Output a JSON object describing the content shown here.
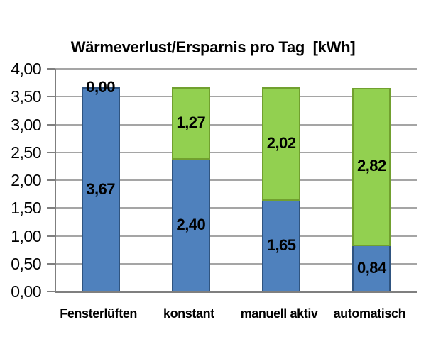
{
  "chart_data": {
    "type": "bar",
    "stacked": true,
    "title": "Wärmeverlust/Ersparnis pro Tag  [kWh]",
    "categories": [
      "Fensterlüften",
      "konstant",
      "manuell aktiv",
      "automatisch"
    ],
    "series": [
      {
        "name": "blue",
        "color": "#4f81bd",
        "border_color": "#2f5480",
        "values": [
          3.67,
          2.4,
          1.65,
          0.84
        ],
        "value_labels": [
          "3,67",
          "2,40",
          "1,65",
          "0,84"
        ]
      },
      {
        "name": "green",
        "color": "#92d050",
        "border_color": "#71a02f",
        "values": [
          0.0,
          1.27,
          2.02,
          2.82
        ],
        "value_labels": [
          "0,00",
          "1,27",
          "2,02",
          "2,82"
        ]
      }
    ],
    "ylim": [
      0,
      4
    ],
    "ytick_step": 0.5,
    "ytick_labels": [
      "0,00",
      "0,50",
      "1,00",
      "1,50",
      "2,00",
      "2,50",
      "3,00",
      "3,50",
      "4,00"
    ],
    "grid": true,
    "legend_position": "none",
    "gridline_color": "#a5a5a5",
    "axis_color": "#7f7f7f",
    "value_label_color": "#000000",
    "background": "#ffffff"
  }
}
